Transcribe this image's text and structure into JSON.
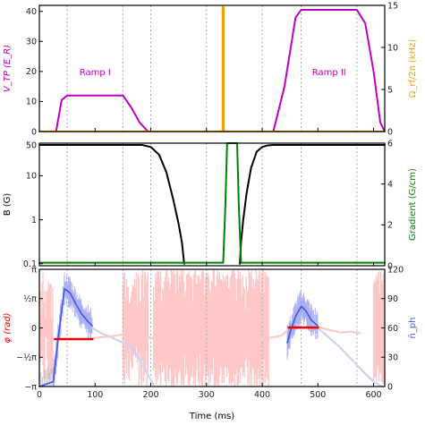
{
  "colors": {
    "magenta": "#c000c0",
    "orange": "#f0a000",
    "black": "#000000",
    "green": "#008000",
    "red": "#ee0000",
    "blue": "#4455ee",
    "light_red": "#ffc8c8",
    "light_blue": "#cfd2f5",
    "grid": "#aaaaaa"
  },
  "chart_data": [
    {
      "type": "line",
      "panel": "top",
      "ylabel_left": "V_TP (E_R)",
      "ylabel_right": "Ω_rf/2π (kHz)",
      "xlim": [
        0,
        620
      ],
      "ylim_left": [
        0,
        42
      ],
      "ylim_right": [
        0,
        15
      ],
      "yticks_left": [
        "0",
        "10",
        "20",
        "30",
        "40"
      ],
      "yticks_right": [
        "0",
        "5",
        "10",
        "15"
      ],
      "vgrid_dashed_x": [
        50,
        150,
        200,
        300,
        400,
        470,
        570
      ],
      "annotations": [
        "Ramp I",
        "Ramp II"
      ],
      "series": [
        {
          "axis": "left",
          "color": "magenta",
          "x": [
            0,
            30,
            40,
            50,
            150,
            165,
            180,
            195,
            620
          ],
          "y": [
            0,
            0,
            10.5,
            12,
            12,
            8,
            3,
            0,
            0
          ]
        },
        {
          "axis": "left",
          "color": "magenta",
          "x": [
            420,
            440,
            460,
            470,
            570,
            585,
            600,
            612,
            620
          ],
          "y": [
            0,
            15,
            38,
            40.5,
            40.5,
            36,
            20,
            3,
            0
          ]
        },
        {
          "axis": "right",
          "color": "orange",
          "x": [
            0,
            329,
            329,
            331,
            331,
            620
          ],
          "y": [
            0,
            0,
            14.8,
            14.8,
            0,
            0
          ]
        }
      ]
    },
    {
      "type": "line",
      "panel": "middle",
      "ylabel_left": "B (G)",
      "ylabel_right": "Gradient (G/cm)",
      "xlim": [
        0,
        620
      ],
      "ylim_left": [
        0.09,
        55
      ],
      "yscale_left": "log",
      "ylim_right": [
        0,
        6
      ],
      "yticks_left": [
        "0.1",
        "1",
        "10",
        "50"
      ],
      "yticks_right": [
        "0",
        "2",
        "4",
        "6"
      ],
      "vgrid_dashed_x": [
        50,
        150,
        200,
        300,
        400,
        470,
        570
      ],
      "series": [
        {
          "axis": "left",
          "color": "black",
          "x": [
            0,
            185,
            200,
            215,
            228,
            240,
            250,
            256,
            260
          ],
          "y": [
            50,
            50,
            45,
            30,
            12,
            3,
            0.8,
            0.3,
            0.1
          ]
        },
        {
          "axis": "left",
          "color": "black",
          "x": [
            360,
            362,
            366,
            372,
            380,
            390,
            400,
            410,
            420,
            620
          ],
          "y": [
            0.1,
            0.3,
            1,
            4,
            15,
            35,
            45,
            49,
            50,
            50
          ]
        },
        {
          "axis": "right",
          "color": "green",
          "x": [
            0,
            330,
            334,
            337,
            355,
            358,
            362,
            620
          ],
          "y": [
            0.15,
            0.15,
            3,
            6,
            6,
            3,
            0.15,
            0.15
          ]
        }
      ]
    },
    {
      "type": "line",
      "panel": "bottom",
      "xlabel": "Time (ms)",
      "ylabel_left": "φ (rad)",
      "ylabel_right": "n̄_ph",
      "xlim": [
        0,
        620
      ],
      "xticks": [
        "0",
        "100",
        "200",
        "300",
        "400",
        "500",
        "600"
      ],
      "ylim_left": [
        -3.1416,
        3.1416
      ],
      "ylim_right": [
        0,
        120
      ],
      "yticks_left": [
        "−π",
        "−½π",
        "0",
        "½π",
        "π"
      ],
      "yticks_right": [
        "0",
        "30",
        "60",
        "90",
        "120"
      ],
      "vgrid_dashed_x": [
        50,
        150,
        200,
        300,
        400,
        470,
        570
      ],
      "series": [
        {
          "axis": "right",
          "color": "blue",
          "x": [
            0,
            25,
            35,
            45,
            55,
            65,
            75,
            85,
            95
          ],
          "y": [
            0,
            5,
            55,
            100,
            96,
            85,
            75,
            68,
            62
          ]
        },
        {
          "axis": "right",
          "color": "blue",
          "x": [
            445,
            450,
            460,
            470,
            478,
            488,
            500
          ],
          "y": [
            45,
            55,
            72,
            82,
            78,
            68,
            62
          ]
        },
        {
          "axis": "right",
          "color": "light_blue",
          "x": [
            95,
            110,
            130,
            150,
            165,
            180,
            195,
            205
          ],
          "y": [
            60,
            55,
            50,
            45,
            40,
            28,
            12,
            2
          ]
        },
        {
          "axis": "right",
          "color": "light_blue",
          "x": [
            500,
            520,
            540,
            560,
            580,
            600,
            615
          ],
          "y": [
            60,
            50,
            40,
            28,
            16,
            5,
            0
          ]
        },
        {
          "axis": "left",
          "color": "light_red",
          "x": [
            95,
            110,
            130,
            150,
            170,
            185,
            200,
            215
          ],
          "y": [
            -0.55,
            -0.5,
            -0.45,
            -0.35,
            -0.3,
            -0.4,
            -0.55,
            -0.5
          ]
        },
        {
          "axis": "left",
          "color": "light_red",
          "x": [
            400,
            410,
            420,
            430,
            440,
            445
          ],
          "y": [
            -0.6,
            -0.55,
            -0.5,
            -0.45,
            -0.3,
            -0.1
          ]
        },
        {
          "axis": "left",
          "color": "light_red",
          "x": [
            500,
            520,
            540,
            560,
            575
          ],
          "y": [
            0.05,
            -0.1,
            -0.25,
            -0.2,
            -0.3
          ]
        },
        {
          "axis": "left",
          "color": "red",
          "x": [
            28,
            95
          ],
          "y": [
            -0.6,
            -0.6
          ]
        },
        {
          "axis": "left",
          "color": "red",
          "x": [
            448,
            500
          ],
          "y": [
            0.02,
            0.02
          ]
        }
      ]
    }
  ]
}
